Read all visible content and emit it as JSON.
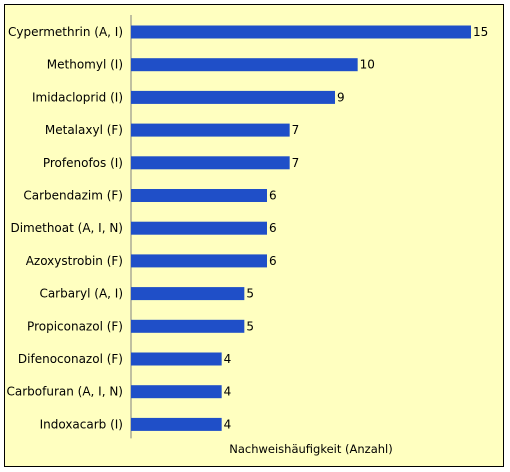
{
  "chart_data": {
    "type": "bar",
    "orientation": "horizontal",
    "categories": [
      "Cypermethrin (A, I)",
      "Methomyl (I)",
      "Imidacloprid (I)",
      "Metalaxyl (F)",
      "Profenofos (I)",
      "Carbendazim (F)",
      "Dimethoat (A, I, N)",
      "Azoxystrobin (F)",
      "Carbaryl (A, I)",
      "Propiconazol (F)",
      "Difenoconazol (F)",
      "Carbofuran (A, I, N)",
      "Indoxacarb (I)"
    ],
    "values": [
      15,
      10,
      9,
      7,
      7,
      6,
      6,
      6,
      5,
      5,
      4,
      4,
      4
    ],
    "xlabel": "Nachweishäufigkeit (Anzahl)",
    "ylabel": "",
    "xlim": [
      0,
      15
    ],
    "grid": false,
    "legend": "none",
    "colors": {
      "bar": "#1f4fc8",
      "background": "#ffffc0",
      "axis": "#808080"
    }
  }
}
